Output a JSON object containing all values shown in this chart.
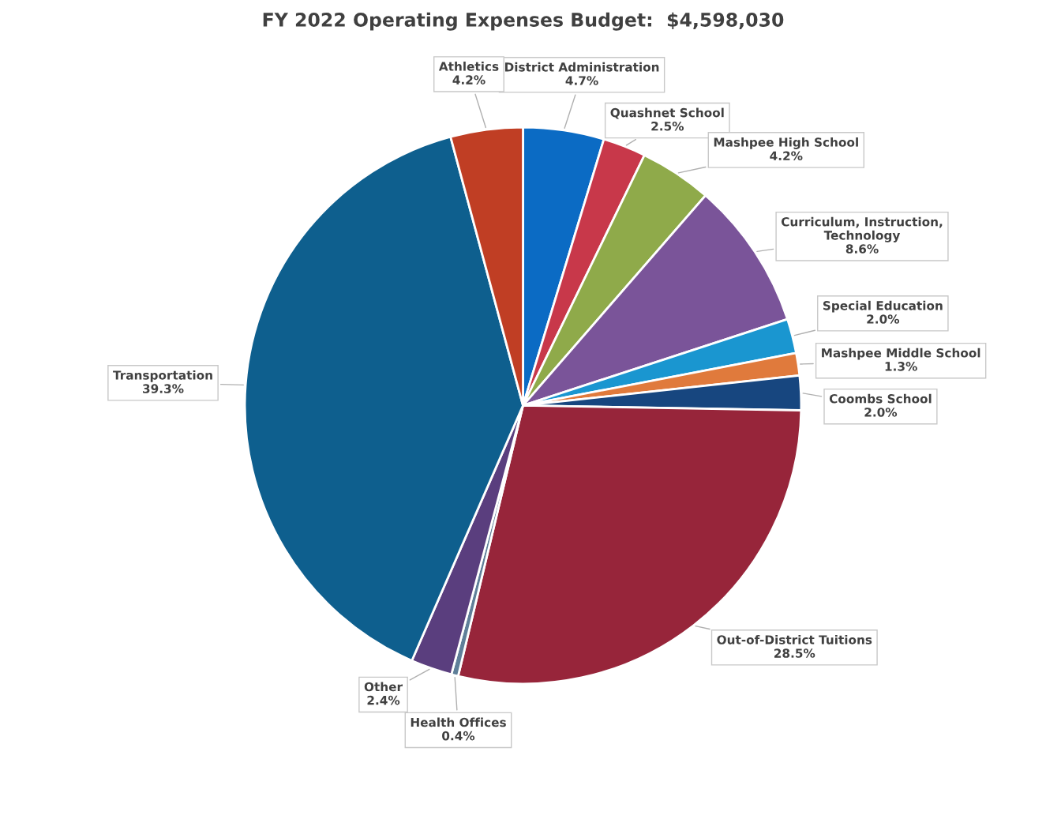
{
  "chart_data": {
    "type": "pie",
    "title": "FY 2022 Operating Expenses Budget:  $4,598,030",
    "categories": [
      "District Administration",
      "Quashnet School",
      "Mashpee High School",
      "Curriculum, Instruction,\nTechnology",
      "Special Education",
      "Mashpee Middle School",
      "Coombs School",
      "Out-of-District Tuitions",
      "Health Offices",
      "Other",
      "Transportation",
      "Athletics"
    ],
    "values": [
      4.7,
      2.5,
      4.2,
      8.6,
      2.0,
      1.3,
      2.0,
      28.5,
      0.4,
      2.4,
      39.3,
      4.2
    ],
    "colors": [
      "#0b6bc4",
      "#c8384a",
      "#8faa4a",
      "#7a5499",
      "#1a96d0",
      "#e07a3c",
      "#17467f",
      "#97253a",
      "#5f7f99",
      "#5a3e7e",
      "#0e5f8e",
      "#c03e24"
    ],
    "value_labels": [
      "4.7%",
      "2.5%",
      "4.2%",
      "8.6%",
      "2.0%",
      "1.3%",
      "2.0%",
      "28.5%",
      "0.4%",
      "2.4%",
      "39.3%",
      "4.2%"
    ],
    "legend": false
  }
}
